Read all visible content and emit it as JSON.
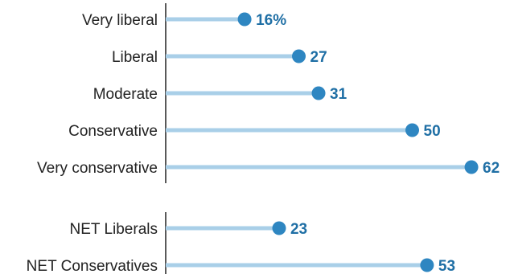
{
  "chart_data": {
    "type": "bar",
    "style": "lollipop",
    "title": "",
    "xlabel": "",
    "ylabel": "",
    "xlim": [
      0,
      65
    ],
    "grid": false,
    "legend": "none",
    "colors": {
      "dot": "#2e86c1",
      "stem": "#a9cfe8",
      "value_text": "#1f6fa5",
      "axis": "#222222"
    },
    "groups": [
      {
        "categories": [
          "Very liberal",
          "Liberal",
          "Moderate",
          "Conservative",
          "Very conservative"
        ],
        "values": [
          16,
          27,
          31,
          50,
          62
        ],
        "value_labels": [
          "16%",
          "27",
          "31",
          "50",
          "62"
        ]
      },
      {
        "categories": [
          "NET Liberals",
          "NET Conservatives"
        ],
        "values": [
          23,
          53
        ],
        "value_labels": [
          "23",
          "53"
        ]
      }
    ]
  }
}
